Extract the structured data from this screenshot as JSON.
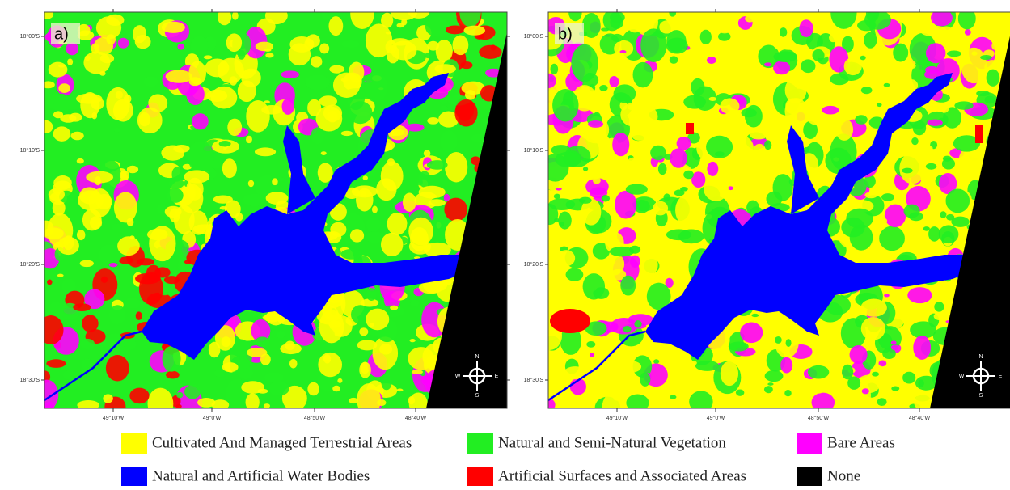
{
  "panels": [
    {
      "label": "a)",
      "lat_labels": [
        "18°00'S",
        "18°10'S",
        "18°20'S",
        "18°30'S"
      ],
      "lon_labels": [
        "49°10'W",
        "49°0'W",
        "48°50'W",
        "48°40'W"
      ]
    },
    {
      "label": "b)",
      "lat_labels": [
        "18°00'S",
        "18°10'S",
        "18°20'S",
        "18°30'S"
      ],
      "lon_labels": [
        "49°10'W",
        "49°0'W",
        "48°50'W",
        "48°40'W"
      ]
    }
  ],
  "compass": {
    "n": "N",
    "s": "S",
    "e": "E",
    "w": "W"
  },
  "legend": [
    {
      "label": "Cultivated And Managed Terrestrial Areas",
      "color": "#ffff00"
    },
    {
      "label": "Natural and Semi-Natural Vegetation",
      "color": "#22ee22"
    },
    {
      "label": "Bare Areas",
      "color": "#ff00ff"
    },
    {
      "label": "Natural and Artificial Water Bodies",
      "color": "#0000ff"
    },
    {
      "label": "Artificial Surfaces and Associated Areas",
      "color": "#ff0000"
    },
    {
      "label": "None",
      "color": "#000000"
    }
  ]
}
